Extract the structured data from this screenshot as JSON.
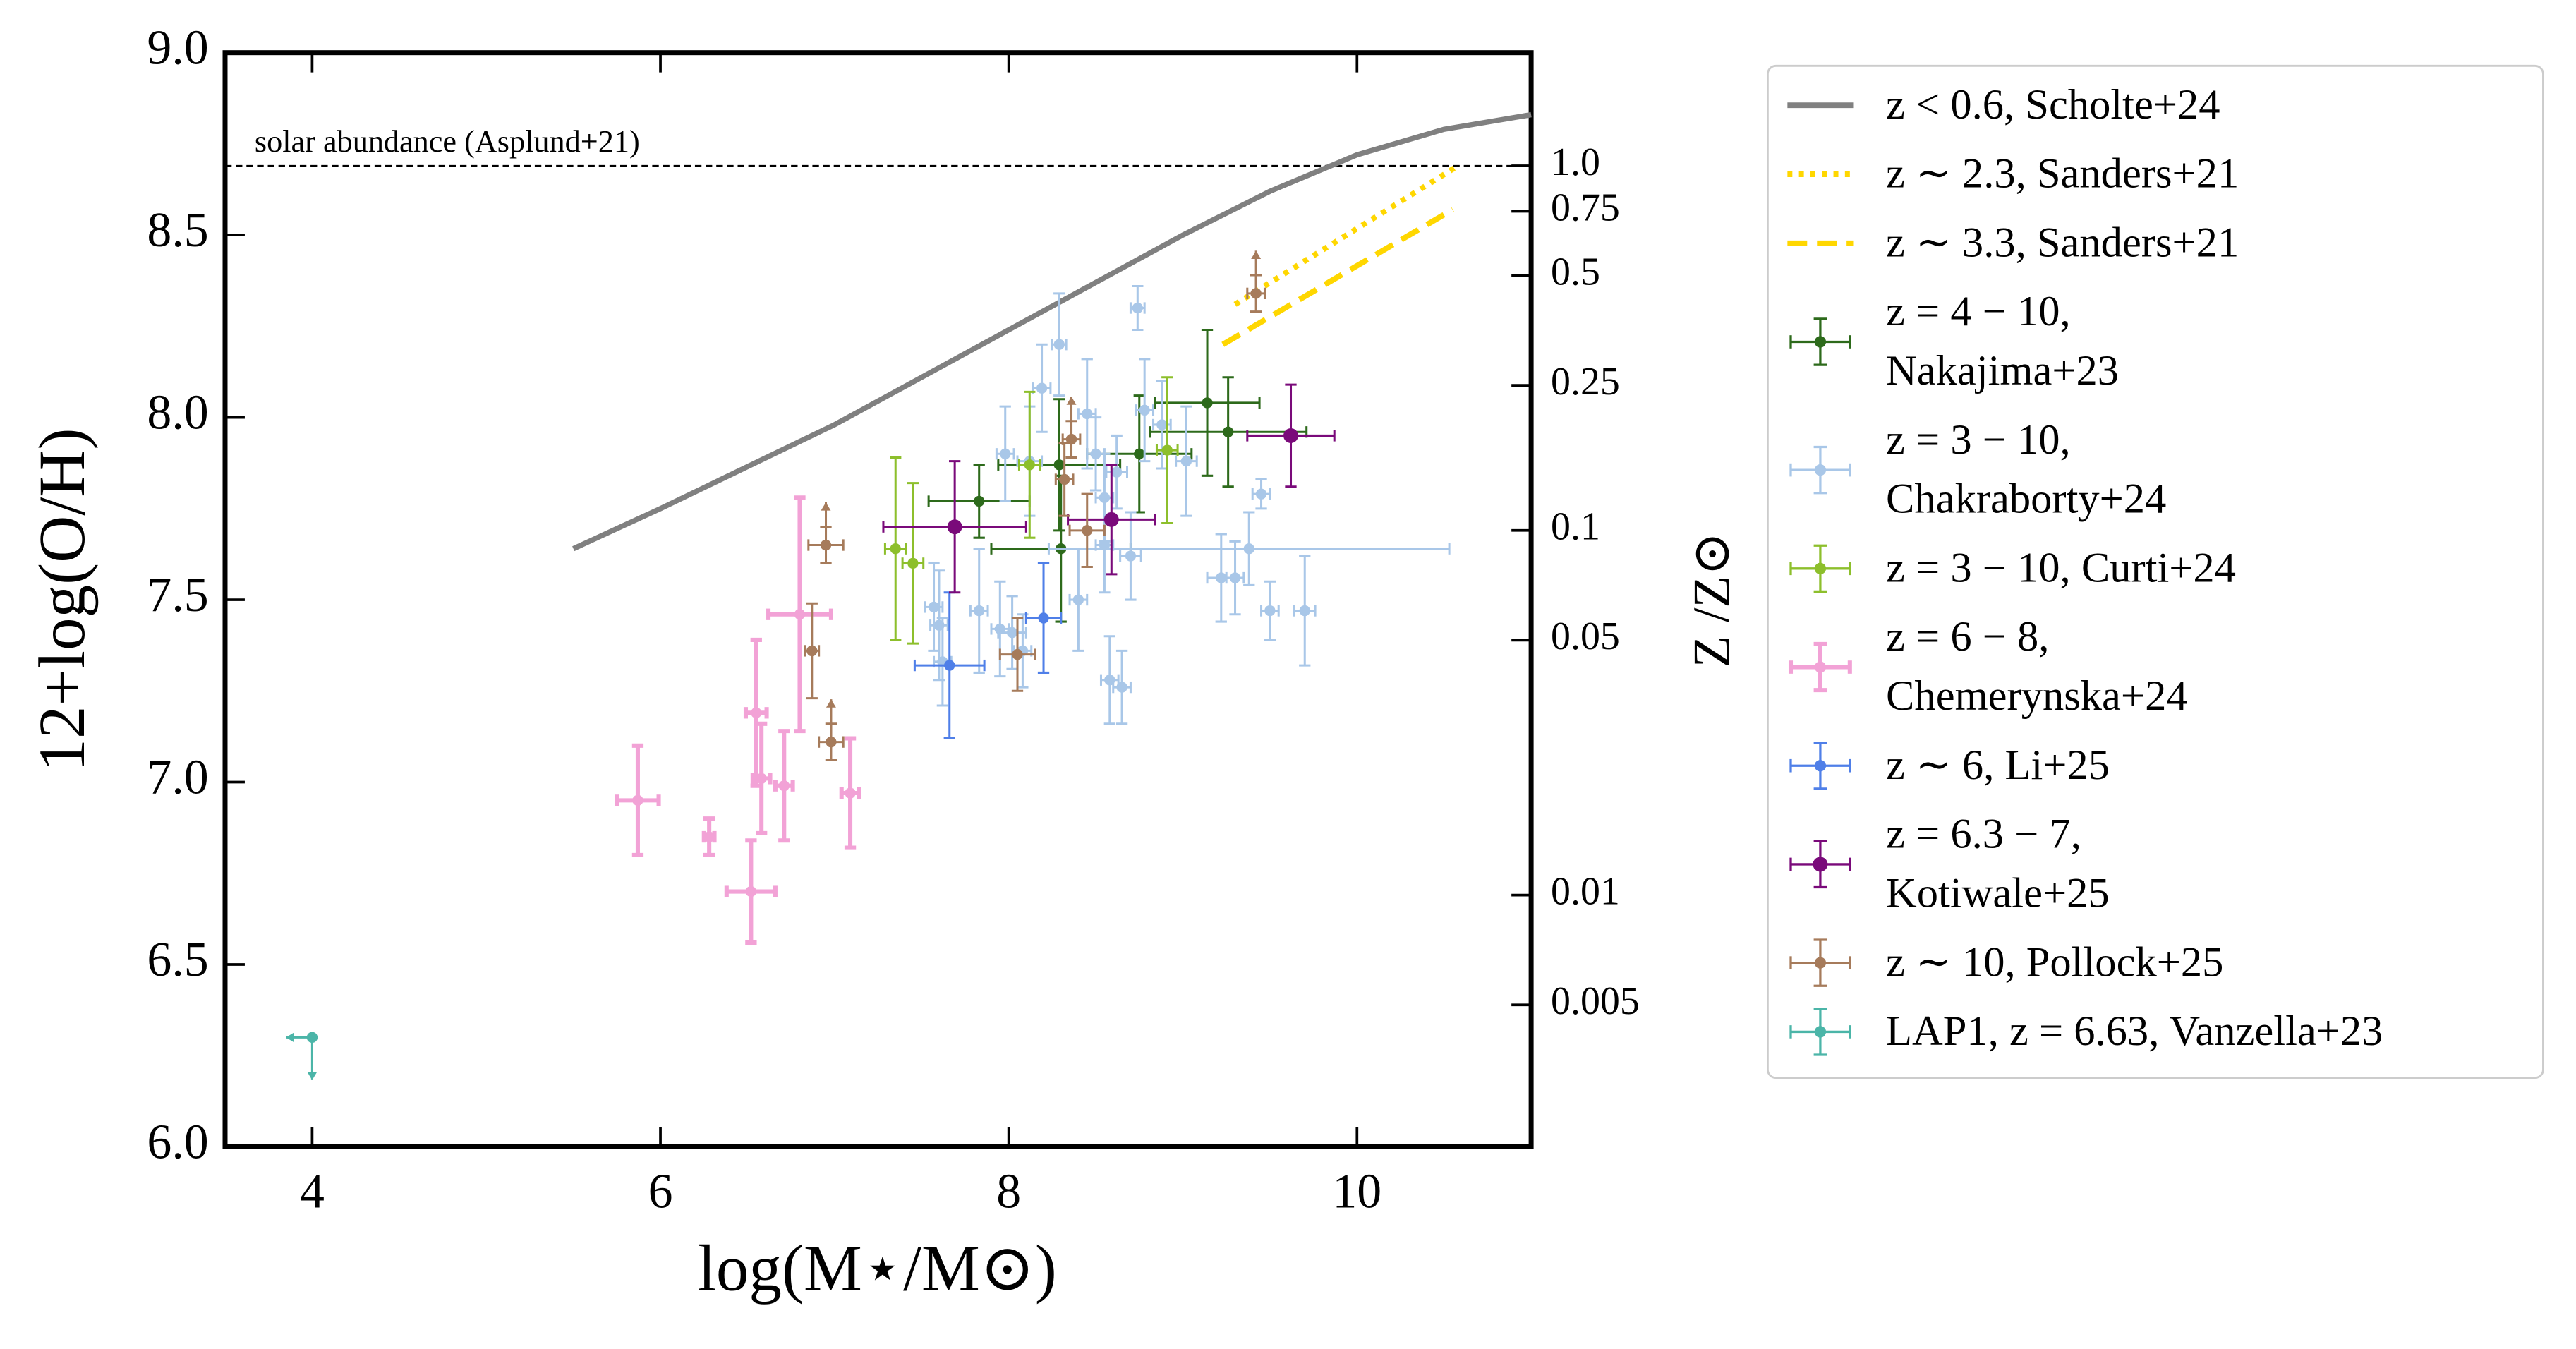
{
  "chart_data": {
    "type": "scatter",
    "xlabel": "log(M⋆/M⊙)",
    "ylabel": "12+log(O/H)",
    "y2label": "Z /Z⊙",
    "xlim": [
      3.5,
      11
    ],
    "ylim": [
      6.0,
      9.0
    ],
    "y2lim": [
      0.00204,
      2.042
    ],
    "y2scale": "log",
    "xticks": [
      4,
      6,
      8,
      10
    ],
    "yticks": [
      {
        "value": 6,
        "label": "6.0"
      },
      6.5,
      {
        "value": 7,
        "label": "7.0"
      },
      7.5,
      {
        "value": 8,
        "label": "8.0"
      },
      8.5,
      {
        "value": 9,
        "label": "9.0"
      }
    ],
    "y2ticks": [
      {
        "value": 1,
        "label": "1.0"
      },
      0.75,
      0.5,
      0.25,
      0.1,
      0.05,
      0.01,
      0.005
    ],
    "hline": {
      "y": 8.69,
      "label": "solar abundance (Asplund+21)"
    },
    "legend": "outside right",
    "series": [
      {
        "name": "z < 0.6, Scholte+24",
        "kind": "line",
        "style": "solid",
        "color": "#808080",
        "x": [
          5.5,
          6,
          7,
          8,
          9,
          9.5,
          10,
          10.5,
          11
        ],
        "y": [
          7.64,
          7.75,
          7.98,
          8.24,
          8.5,
          8.62,
          8.72,
          8.79,
          8.83
        ]
      },
      {
        "name": "z ∼ 2.3, Sanders+21",
        "kind": "line",
        "style": "dotted",
        "color": "#ffd700",
        "x": [
          9.3,
          10.58
        ],
        "y": [
          8.31,
          8.69
        ]
      },
      {
        "name": "z ∼ 3.3, Sanders+21",
        "kind": "line",
        "style": "dashed",
        "color": "#ffd700",
        "x": [
          9.23,
          10.55
        ],
        "y": [
          8.2,
          8.57
        ]
      },
      {
        "name": "z = 4 − 10,\nNakajima+23",
        "kind": "points",
        "color": "#2d6a1b",
        "x": [
          7.83,
          8.29,
          8.3,
          8.75,
          9.14,
          9.26
        ],
        "y": [
          7.77,
          7.87,
          7.64,
          7.9,
          8.04,
          7.96
        ],
        "xerr": [
          0.29,
          0.35,
          0.4,
          0.3,
          0.3,
          0.45
        ],
        "yerr": [
          0.1,
          0.18,
          0.2,
          0.16,
          0.2,
          0.15
        ]
      },
      {
        "name": "z = 3 − 10,\nChakraborty+24",
        "kind": "points",
        "color": "#a9c7e8",
        "x": [
          7.57,
          7.6,
          7.62,
          7.83,
          7.95,
          8.02,
          7.98,
          8.12,
          8.19,
          8.29,
          8.45,
          8.5,
          8.55,
          8.62,
          8.55,
          8.58,
          8.65,
          8.7,
          8.78,
          8.74,
          8.88,
          9.02,
          9.22,
          9.3,
          9.45,
          9.38,
          9.5,
          9.7,
          8.4,
          8.08
        ],
        "y": [
          7.48,
          7.43,
          7.33,
          7.47,
          7.42,
          7.41,
          7.9,
          7.88,
          8.08,
          8.2,
          8.01,
          7.9,
          7.78,
          7.85,
          7.65,
          7.28,
          7.26,
          7.62,
          8.02,
          8.3,
          7.98,
          7.88,
          7.56,
          7.56,
          7.79,
          7.64,
          7.47,
          7.47,
          7.5,
          7.36
        ],
        "xerr": [
          0.05,
          0.05,
          0.05,
          0.05,
          0.05,
          0.08,
          0.05,
          0.07,
          0.05,
          0.04,
          0.05,
          0.05,
          0.05,
          0.06,
          0.05,
          0.05,
          0.05,
          0.06,
          0.05,
          0.04,
          0.05,
          0.06,
          0.08,
          0.05,
          0.05,
          1.15,
          0.05,
          0.06,
          0.05,
          0.05
        ],
        "yerr": [
          0.12,
          0.15,
          0.12,
          0.17,
          0.13,
          0.1,
          0.13,
          0.15,
          0.12,
          0.14,
          0.15,
          0.1,
          0.12,
          0.1,
          0.13,
          0.12,
          0.1,
          0.12,
          0.14,
          0.06,
          0.12,
          0.15,
          0.12,
          0.1,
          0.04,
          0.1,
          0.08,
          0.15,
          0.14,
          0.1
        ]
      },
      {
        "name": "z = 3 − 10, Curti+24",
        "kind": "points",
        "color": "#8dbf2c",
        "x": [
          7.35,
          7.45,
          8.12,
          8.91
        ],
        "y": [
          7.64,
          7.6,
          7.87,
          7.91
        ],
        "xerr": [
          0.06,
          0.06,
          0.06,
          0.06
        ],
        "yerr": [
          0.25,
          0.22,
          0.2,
          0.2
        ]
      },
      {
        "name": "z = 6 − 8,\nChemerynska+24",
        "kind": "points",
        "color": "#f2a2d6",
        "x": [
          5.87,
          6.28,
          6.52,
          6.55,
          6.58,
          6.71,
          6.8,
          7.09
        ],
        "y": [
          6.95,
          6.85,
          6.7,
          7.19,
          7.01,
          6.99,
          7.46,
          6.97
        ],
        "xerr": [
          0.12,
          0.03,
          0.14,
          0.06,
          0.05,
          0.05,
          0.18,
          0.05
        ],
        "yerr": [
          0.15,
          0.05,
          0.14,
          0.2,
          0.15,
          0.15,
          0.32,
          0.15
        ]
      },
      {
        "name": "z ∼ 6, Li+25",
        "kind": "points",
        "color": "#4f7fe8",
        "x": [
          7.66,
          8.2
        ],
        "y": [
          7.32,
          7.45
        ],
        "xerr": [
          0.2,
          0.1
        ],
        "yerr": [
          0.2,
          0.15
        ]
      },
      {
        "name": "z = 6.3 − 7,\nKotiwale+25",
        "kind": "points",
        "color": "#7a0a7a",
        "x": [
          7.69,
          8.59,
          9.62
        ],
        "y": [
          7.7,
          7.72,
          7.95
        ],
        "xerr": [
          0.41,
          0.25,
          0.25
        ],
        "yerr": [
          0.18,
          0.15,
          0.14
        ]
      },
      {
        "name": "z ∼ 10, Pollock+25",
        "kind": "points",
        "color": "#a67b5b",
        "x": [
          6.95,
          6.87,
          6.98,
          8.05,
          8.32,
          8.45,
          8.36,
          9.42
        ],
        "y": [
          7.65,
          7.36,
          7.11,
          7.35,
          7.83,
          7.69,
          7.94,
          8.34
        ],
        "xerr": [
          0.1,
          0.04,
          0.07,
          0.1,
          0.05,
          0.1,
          0.05,
          0.05
        ],
        "yerr": [
          0.05,
          0.13,
          0.05,
          0.1,
          0.1,
          0.1,
          0.05,
          0.05
        ],
        "lolims": [
          true,
          false,
          true,
          false,
          false,
          false,
          true,
          true
        ]
      },
      {
        "name": "LAP1, z = 6.63, Vanzella+23",
        "kind": "points",
        "color": "#4bb5a8",
        "x": [
          4.0
        ],
        "y": [
          6.3
        ],
        "xerr": [
          0
        ],
        "yerr": [
          0
        ],
        "uplims": [
          true
        ],
        "xuplims": [
          true
        ]
      }
    ]
  }
}
